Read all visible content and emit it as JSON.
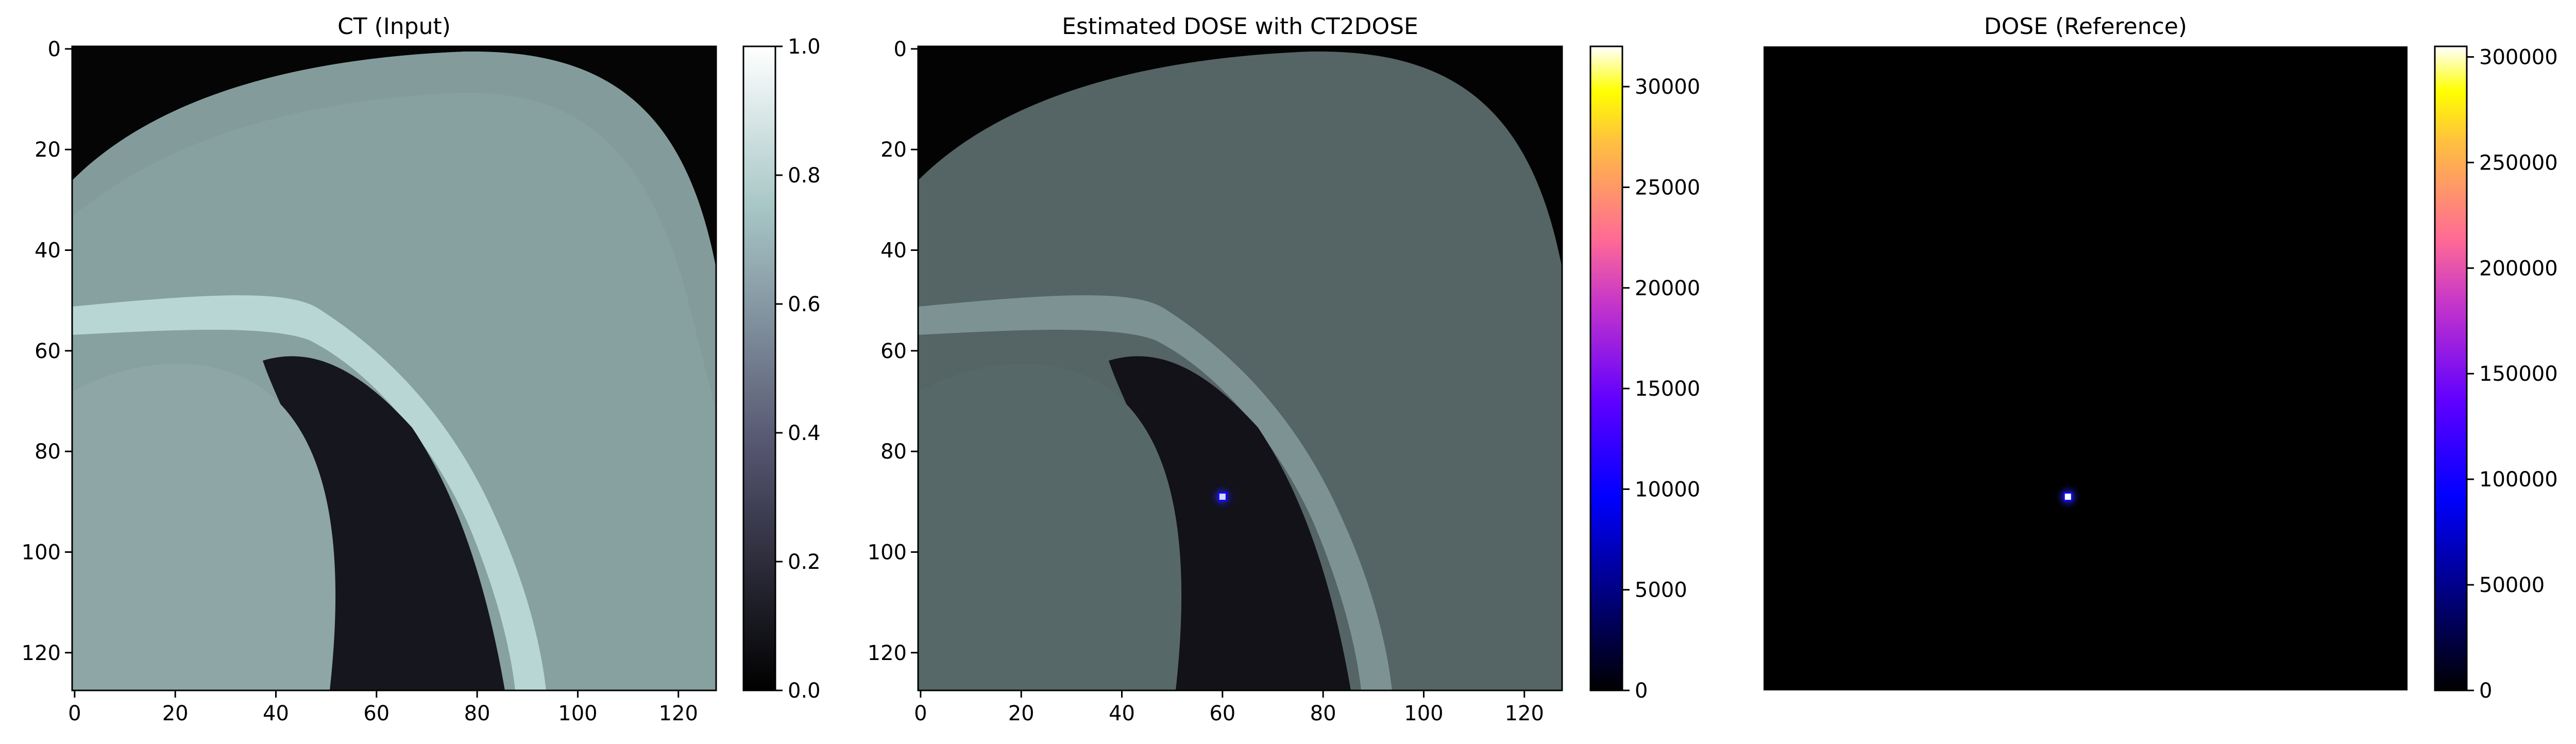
{
  "chart_data": [
    {
      "type": "heatmap",
      "title": "CT (Input)",
      "x_ticks": [
        0,
        20,
        40,
        60,
        80,
        100,
        120
      ],
      "y_ticks": [
        0,
        20,
        40,
        60,
        80,
        100,
        120
      ],
      "xlim": [
        -0.5,
        127.5
      ],
      "ylim": [
        127.5,
        -0.5
      ],
      "axes_visible": true,
      "colormap": "bone",
      "colorbar": {
        "range": [
          0,
          1.0
        ],
        "ticks": [
          0.0,
          0.2,
          0.4,
          0.6,
          0.8,
          1.0
        ],
        "tick_labels": [
          "0.0",
          "0.2",
          "0.4",
          "0.6",
          "0.8",
          "1.0"
        ]
      },
      "content": "CT slice"
    },
    {
      "type": "heatmap",
      "title": "Estimated DOSE with CT2DOSE",
      "x_ticks": [
        0,
        20,
        40,
        60,
        80,
        100,
        120
      ],
      "y_ticks": [
        0,
        20,
        40,
        60,
        80,
        100,
        120
      ],
      "xlim": [
        -0.5,
        127.5
      ],
      "ylim": [
        127.5,
        -0.5
      ],
      "axes_visible": true,
      "colormap": "gnuplot2",
      "colorbar": {
        "range": [
          0,
          32000
        ],
        "ticks": [
          0,
          5000,
          10000,
          15000,
          20000,
          25000,
          30000
        ],
        "tick_labels": [
          "0",
          "5000",
          "10000",
          "15000",
          "20000",
          "25000",
          "30000"
        ]
      },
      "hotspot": {
        "x": 60,
        "y": 89
      },
      "content": "dose overlay on CT"
    },
    {
      "type": "heatmap",
      "title": "DOSE (Reference)",
      "axes_visible": false,
      "colormap": "gnuplot2",
      "colorbar": {
        "range": [
          0,
          305000
        ],
        "ticks": [
          0,
          50000,
          100000,
          150000,
          200000,
          250000,
          300000
        ],
        "tick_labels": [
          "0",
          "50000",
          "100000",
          "150000",
          "200000",
          "250000",
          "300000"
        ]
      },
      "hotspot": {
        "x": 60,
        "y": 89
      },
      "content": "dose map"
    }
  ]
}
